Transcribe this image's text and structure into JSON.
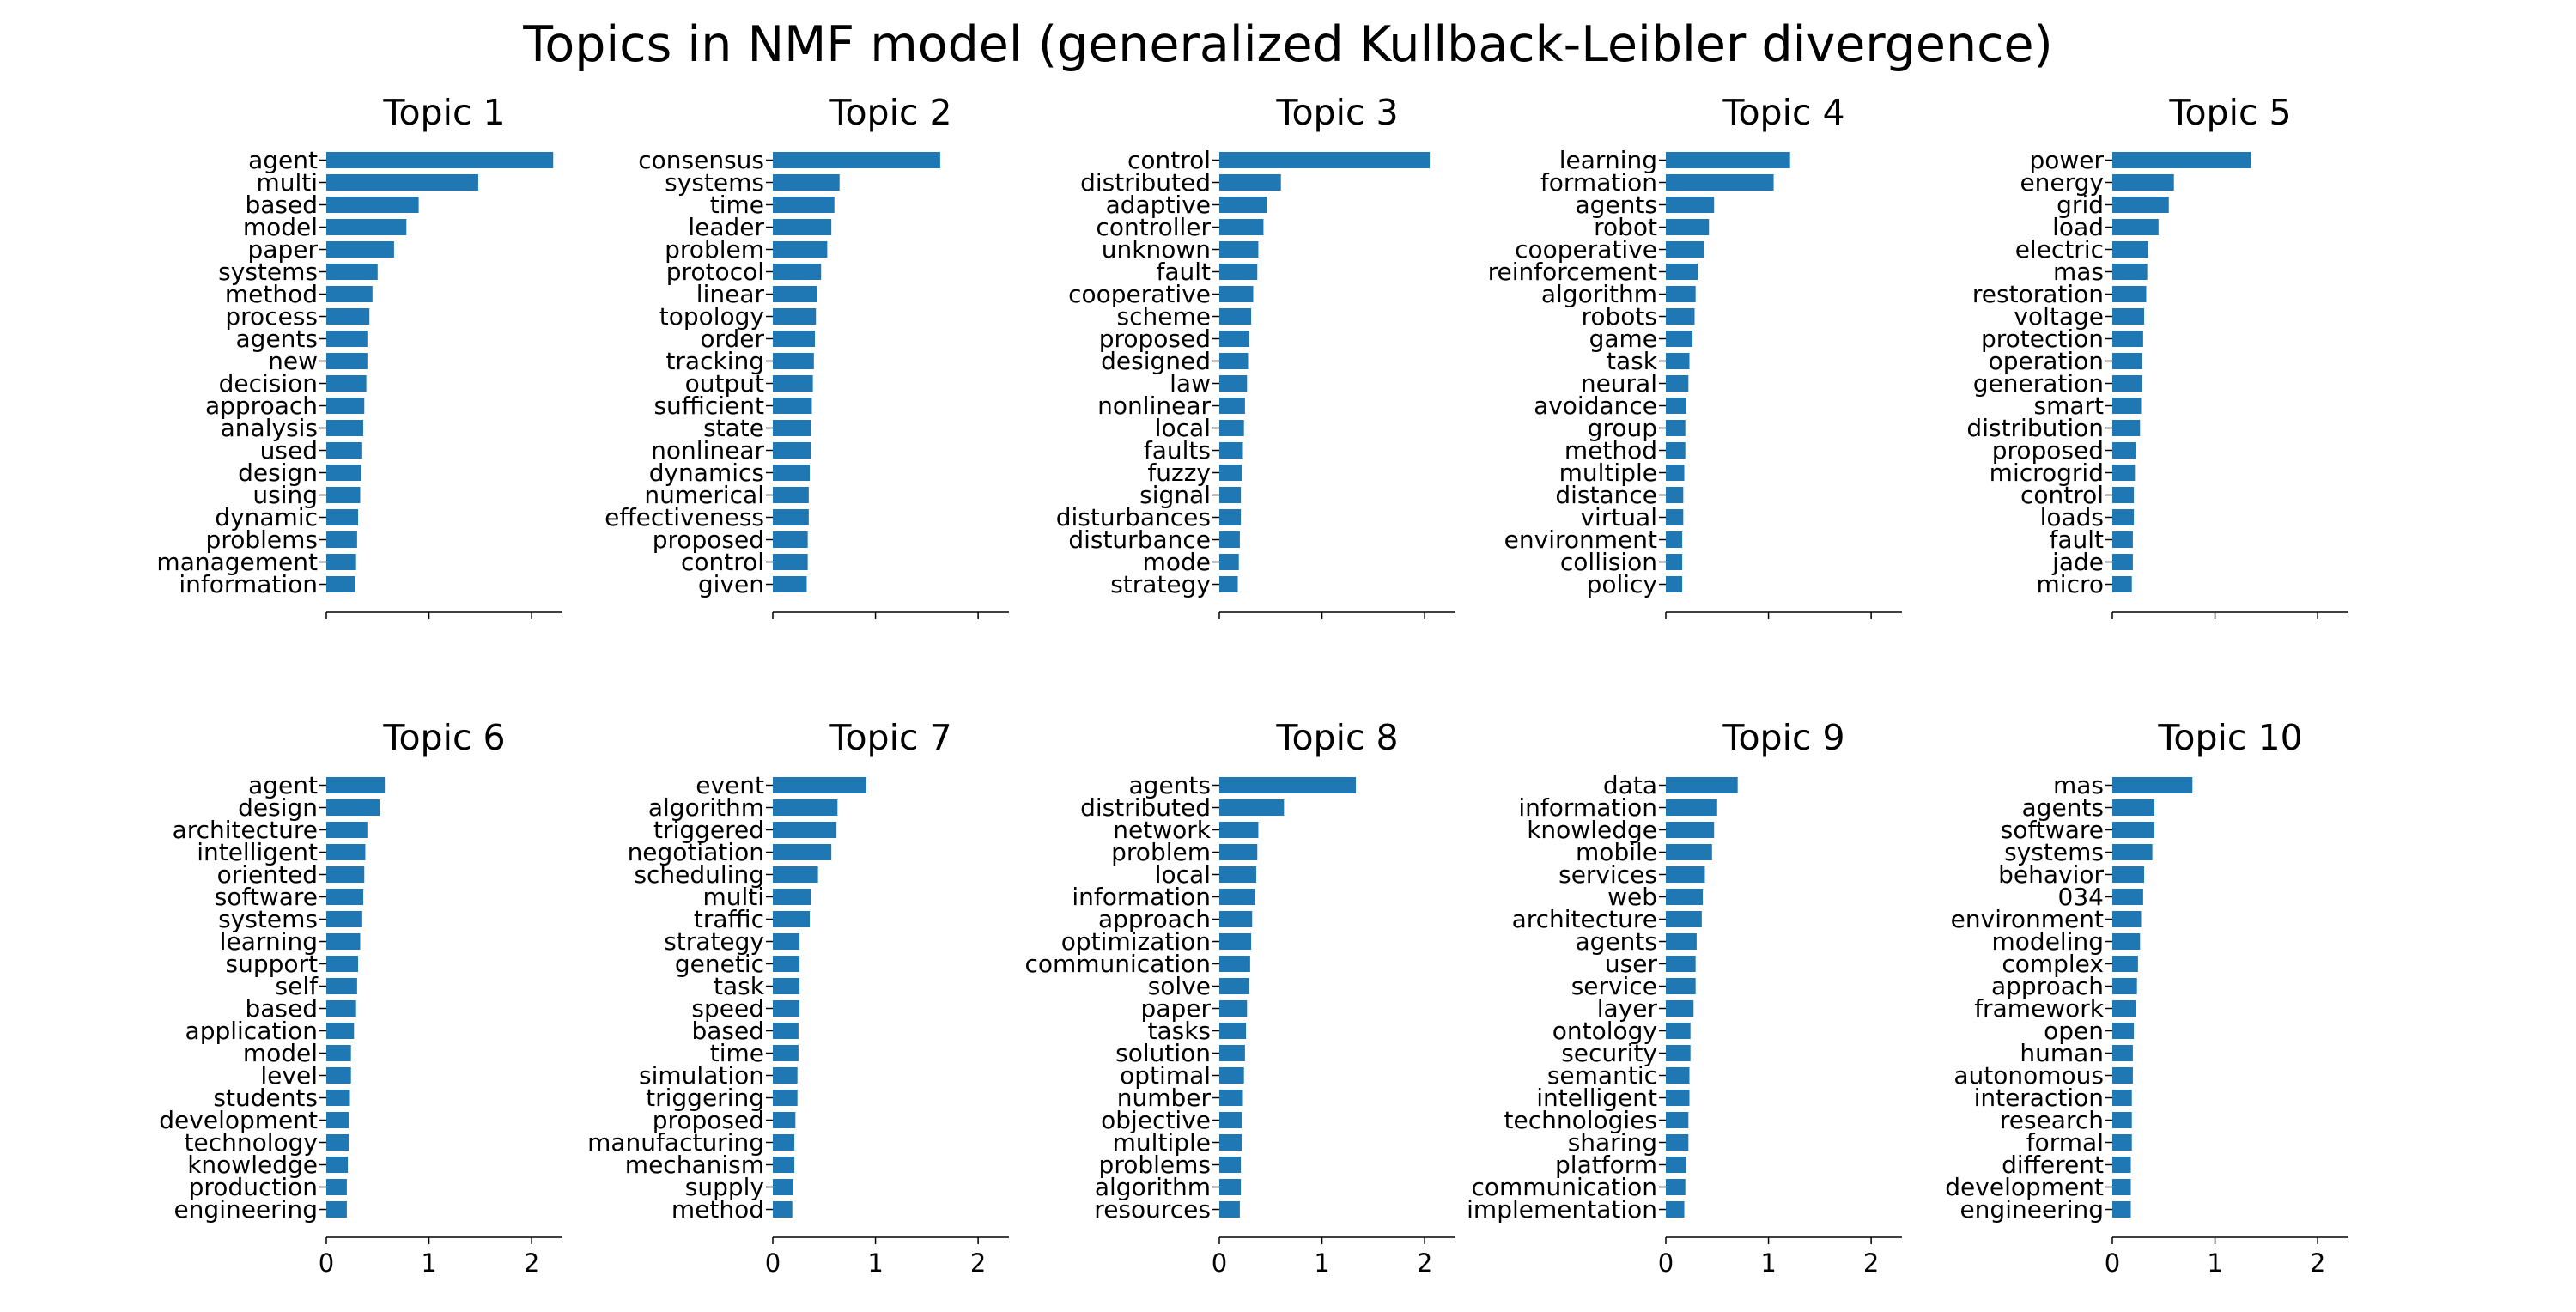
{
  "title": "Topics in NMF model (generalized Kullback-Leibler divergence)",
  "bar_color": "#1f77b4",
  "chart_data": [
    {
      "type": "bar",
      "orientation": "horizontal",
      "title": "Topic 1",
      "xlim": [
        0,
        2.3
      ],
      "xticks": [
        0,
        1,
        2
      ],
      "show_xtick_labels": false,
      "categories": [
        "agent",
        "multi",
        "based",
        "model",
        "paper",
        "systems",
        "method",
        "process",
        "agents",
        "new",
        "decision",
        "approach",
        "analysis",
        "used",
        "design",
        "using",
        "dynamic",
        "problems",
        "management",
        "information"
      ],
      "values": [
        2.21,
        1.48,
        0.9,
        0.78,
        0.66,
        0.5,
        0.45,
        0.42,
        0.4,
        0.4,
        0.39,
        0.37,
        0.36,
        0.35,
        0.34,
        0.33,
        0.31,
        0.3,
        0.29,
        0.28
      ]
    },
    {
      "type": "bar",
      "orientation": "horizontal",
      "title": "Topic 2",
      "xlim": [
        0,
        2.3
      ],
      "xticks": [
        0,
        1,
        2
      ],
      "show_xtick_labels": false,
      "categories": [
        "consensus",
        "systems",
        "time",
        "leader",
        "problem",
        "protocol",
        "linear",
        "topology",
        "order",
        "tracking",
        "output",
        "sufficient",
        "state",
        "nonlinear",
        "dynamics",
        "numerical",
        "effectiveness",
        "proposed",
        "control",
        "given"
      ],
      "values": [
        1.63,
        0.65,
        0.6,
        0.57,
        0.53,
        0.47,
        0.43,
        0.42,
        0.41,
        0.4,
        0.39,
        0.38,
        0.37,
        0.37,
        0.36,
        0.35,
        0.35,
        0.34,
        0.34,
        0.33
      ]
    },
    {
      "type": "bar",
      "orientation": "horizontal",
      "title": "Topic 3",
      "xlim": [
        0,
        2.3
      ],
      "xticks": [
        0,
        1,
        2
      ],
      "show_xtick_labels": false,
      "categories": [
        "control",
        "distributed",
        "adaptive",
        "controller",
        "unknown",
        "fault",
        "cooperative",
        "scheme",
        "proposed",
        "designed",
        "law",
        "nonlinear",
        "local",
        "faults",
        "fuzzy",
        "signal",
        "disturbances",
        "disturbance",
        "mode",
        "strategy"
      ],
      "values": [
        2.05,
        0.6,
        0.46,
        0.43,
        0.38,
        0.37,
        0.33,
        0.31,
        0.29,
        0.28,
        0.27,
        0.25,
        0.24,
        0.23,
        0.22,
        0.21,
        0.21,
        0.2,
        0.19,
        0.18
      ]
    },
    {
      "type": "bar",
      "orientation": "horizontal",
      "title": "Topic 4",
      "xlim": [
        0,
        2.3
      ],
      "xticks": [
        0,
        1,
        2
      ],
      "show_xtick_labels": false,
      "categories": [
        "learning",
        "formation",
        "agents",
        "robot",
        "cooperative",
        "reinforcement",
        "algorithm",
        "robots",
        "game",
        "task",
        "neural",
        "avoidance",
        "group",
        "method",
        "multiple",
        "distance",
        "virtual",
        "environment",
        "collision",
        "policy"
      ],
      "values": [
        1.21,
        1.05,
        0.47,
        0.42,
        0.37,
        0.31,
        0.29,
        0.28,
        0.26,
        0.23,
        0.22,
        0.2,
        0.19,
        0.19,
        0.18,
        0.17,
        0.17,
        0.16,
        0.16,
        0.16
      ]
    },
    {
      "type": "bar",
      "orientation": "horizontal",
      "title": "Topic 5",
      "xlim": [
        0,
        2.3
      ],
      "xticks": [
        0,
        1,
        2
      ],
      "show_xtick_labels": false,
      "categories": [
        "power",
        "energy",
        "grid",
        "load",
        "electric",
        "mas",
        "restoration",
        "voltage",
        "protection",
        "operation",
        "generation",
        "smart",
        "distribution",
        "proposed",
        "microgrid",
        "control",
        "loads",
        "fault",
        "jade",
        "micro"
      ],
      "values": [
        1.35,
        0.6,
        0.55,
        0.45,
        0.35,
        0.34,
        0.33,
        0.31,
        0.3,
        0.29,
        0.29,
        0.28,
        0.27,
        0.23,
        0.22,
        0.21,
        0.21,
        0.2,
        0.2,
        0.19
      ]
    },
    {
      "type": "bar",
      "orientation": "horizontal",
      "title": "Topic 6",
      "xlim": [
        0,
        2.3
      ],
      "xticks": [
        0,
        1,
        2
      ],
      "show_xtick_labels": true,
      "categories": [
        "agent",
        "design",
        "architecture",
        "intelligent",
        "oriented",
        "software",
        "systems",
        "learning",
        "support",
        "self",
        "based",
        "application",
        "model",
        "level",
        "students",
        "development",
        "technology",
        "knowledge",
        "production",
        "engineering"
      ],
      "values": [
        0.57,
        0.52,
        0.4,
        0.38,
        0.37,
        0.36,
        0.35,
        0.33,
        0.31,
        0.3,
        0.29,
        0.27,
        0.24,
        0.24,
        0.23,
        0.22,
        0.22,
        0.21,
        0.2,
        0.2
      ]
    },
    {
      "type": "bar",
      "orientation": "horizontal",
      "title": "Topic 7",
      "xlim": [
        0,
        2.3
      ],
      "xticks": [
        0,
        1,
        2
      ],
      "show_xtick_labels": true,
      "categories": [
        "event",
        "algorithm",
        "triggered",
        "negotiation",
        "scheduling",
        "multi",
        "traffic",
        "strategy",
        "genetic",
        "task",
        "speed",
        "based",
        "time",
        "simulation",
        "triggering",
        "proposed",
        "manufacturing",
        "mechanism",
        "supply",
        "method"
      ],
      "values": [
        0.91,
        0.63,
        0.62,
        0.57,
        0.44,
        0.37,
        0.36,
        0.26,
        0.26,
        0.26,
        0.26,
        0.25,
        0.25,
        0.24,
        0.24,
        0.22,
        0.21,
        0.21,
        0.2,
        0.19
      ]
    },
    {
      "type": "bar",
      "orientation": "horizontal",
      "title": "Topic 8",
      "xlim": [
        0,
        2.3
      ],
      "xticks": [
        0,
        1,
        2
      ],
      "show_xtick_labels": true,
      "categories": [
        "agents",
        "distributed",
        "network",
        "problem",
        "local",
        "information",
        "approach",
        "optimization",
        "communication",
        "solve",
        "paper",
        "tasks",
        "solution",
        "optimal",
        "number",
        "objective",
        "multiple",
        "problems",
        "algorithm",
        "resources"
      ],
      "values": [
        1.33,
        0.63,
        0.38,
        0.37,
        0.36,
        0.35,
        0.32,
        0.31,
        0.3,
        0.29,
        0.27,
        0.26,
        0.25,
        0.24,
        0.23,
        0.22,
        0.22,
        0.21,
        0.21,
        0.2
      ]
    },
    {
      "type": "bar",
      "orientation": "horizontal",
      "title": "Topic 9",
      "xlim": [
        0,
        2.3
      ],
      "xticks": [
        0,
        1,
        2
      ],
      "show_xtick_labels": true,
      "categories": [
        "data",
        "information",
        "knowledge",
        "mobile",
        "services",
        "web",
        "architecture",
        "agents",
        "user",
        "service",
        "layer",
        "ontology",
        "security",
        "semantic",
        "intelligent",
        "technologies",
        "sharing",
        "platform",
        "communication",
        "implementation"
      ],
      "values": [
        0.7,
        0.5,
        0.47,
        0.45,
        0.38,
        0.36,
        0.35,
        0.3,
        0.29,
        0.29,
        0.27,
        0.24,
        0.24,
        0.23,
        0.23,
        0.22,
        0.22,
        0.2,
        0.19,
        0.18
      ]
    },
    {
      "type": "bar",
      "orientation": "horizontal",
      "title": "Topic 10",
      "xlim": [
        0,
        2.3
      ],
      "xticks": [
        0,
        1,
        2
      ],
      "show_xtick_labels": true,
      "categories": [
        "mas",
        "agents",
        "software",
        "systems",
        "behavior",
        "034",
        "environment",
        "modeling",
        "complex",
        "approach",
        "framework",
        "open",
        "human",
        "autonomous",
        "interaction",
        "research",
        "formal",
        "different",
        "development",
        "engineering"
      ],
      "values": [
        0.78,
        0.41,
        0.41,
        0.39,
        0.31,
        0.3,
        0.28,
        0.27,
        0.25,
        0.24,
        0.23,
        0.21,
        0.2,
        0.2,
        0.19,
        0.19,
        0.19,
        0.18,
        0.18,
        0.18
      ]
    }
  ]
}
